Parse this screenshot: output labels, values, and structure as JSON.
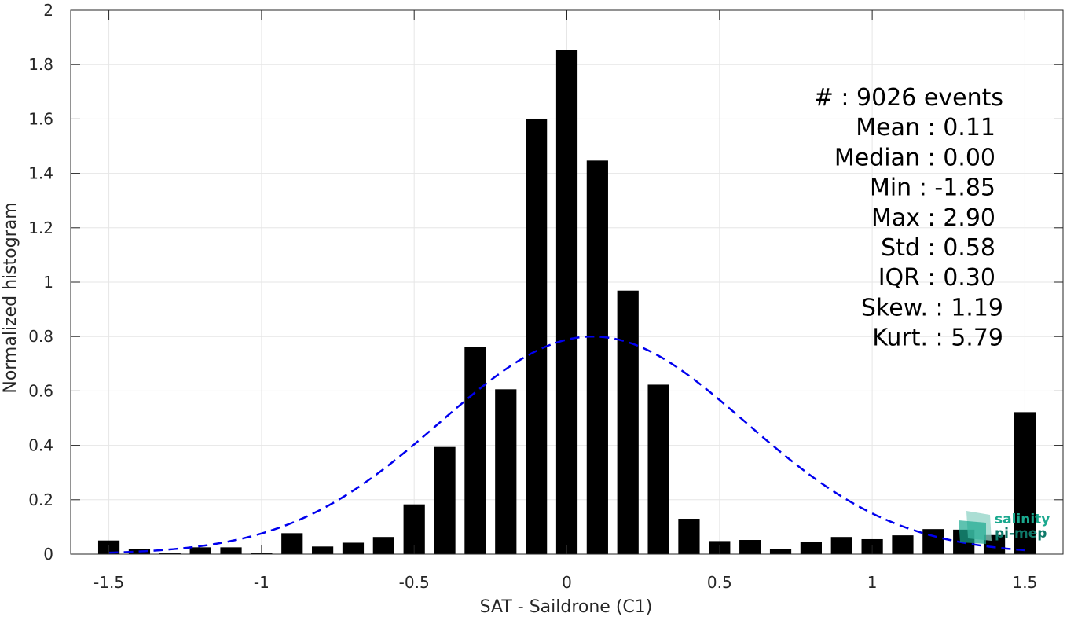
{
  "chart_data": {
    "type": "bar",
    "title": "",
    "xlabel": "SAT - Saildrone (C1)",
    "ylabel": "Normalized histogram",
    "xlim": [
      -1.625,
      1.625
    ],
    "ylim": [
      0,
      2
    ],
    "xticks": [
      -1.5,
      -1,
      -0.5,
      0,
      0.5,
      1,
      1.5
    ],
    "xtick_labels": [
      "-1.5",
      "-1",
      "-0.5",
      "0",
      "0.5",
      "1",
      "1.5"
    ],
    "yticks": [
      0,
      0.2,
      0.4,
      0.6,
      0.8,
      1,
      1.2,
      1.4,
      1.6,
      1.8,
      2
    ],
    "ytick_labels": [
      "0",
      "0.2",
      "0.4",
      "0.6",
      "0.8",
      "1",
      "1.2",
      "1.4",
      "1.6",
      "1.8",
      "2"
    ],
    "grid": true,
    "bar_width": 0.07,
    "x": [
      -1.5,
      -1.4,
      -1.3,
      -1.2,
      -1.1,
      -1.0,
      -0.9,
      -0.8,
      -0.7,
      -0.6,
      -0.5,
      -0.4,
      -0.3,
      -0.2,
      -0.1,
      0.0,
      0.1,
      0.2,
      0.3,
      0.4,
      0.5,
      0.6,
      0.7,
      0.8,
      0.9,
      1.0,
      1.1,
      1.2,
      1.3,
      1.4,
      1.5
    ],
    "values": [
      0.05,
      0.02,
      0.003,
      0.025,
      0.025,
      0.005,
      0.077,
      0.028,
      0.042,
      0.063,
      0.183,
      0.394,
      0.761,
      0.606,
      1.599,
      1.855,
      1.447,
      0.969,
      0.623,
      0.13,
      0.048,
      0.052,
      0.02,
      0.044,
      0.063,
      0.055,
      0.069,
      0.092,
      0.09,
      0.07,
      0.522
    ],
    "bar_color": "#000000",
    "fit_curve": {
      "style": "dashed",
      "color": "#0000ee",
      "mean": 0.085,
      "std": 0.5,
      "x_range": [
        -1.5,
        1.5
      ]
    },
    "annotations": [
      "#  : 9026 events",
      "Mean : 0.11",
      "Median : 0.00",
      "Min : -1.85",
      "Max : 2.90",
      "Std : 0.58",
      "IQR : 0.30",
      "Skew. : 1.19",
      "Kurt. : 5.79"
    ]
  },
  "logo": {
    "line1": "salinity",
    "line2": "pi-mep",
    "colors": [
      "#1aa88e",
      "#0f7a6a"
    ]
  }
}
